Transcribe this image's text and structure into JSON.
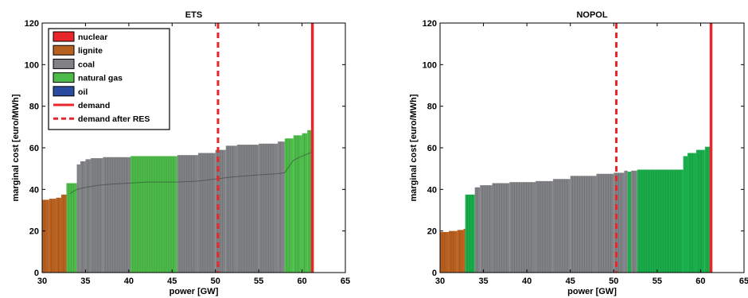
{
  "colors": {
    "nuclear": "#e8262a",
    "lignite": "#b8601f",
    "coal": "#808285",
    "natural_gas": "#4dbb4a",
    "natural_gas_dark": "#1aad4b",
    "oil": "#2b4ba0",
    "demand": "#e8262a"
  },
  "legend": {
    "entries": [
      {
        "key": "nuclear",
        "label": "nuclear",
        "kind": "box"
      },
      {
        "key": "lignite",
        "label": "lignite",
        "kind": "box"
      },
      {
        "key": "coal",
        "label": "coal",
        "kind": "box"
      },
      {
        "key": "natural_gas",
        "label": "natural gas",
        "kind": "box"
      },
      {
        "key": "oil",
        "label": "oil",
        "kind": "box"
      },
      {
        "key": "demand",
        "label": "demand",
        "kind": "solid"
      },
      {
        "key": "demand",
        "label": "demand after RES",
        "kind": "dashed"
      }
    ]
  },
  "chart_data": [
    {
      "type": "bar",
      "title": "ETS",
      "xlabel": "power [GW]",
      "ylabel": "marginal cost [euro/MWh]",
      "xlim": [
        30,
        65
      ],
      "ylim": [
        0,
        120
      ],
      "xticks": [
        30,
        35,
        40,
        45,
        50,
        55,
        60,
        65
      ],
      "yticks": [
        0,
        20,
        40,
        60,
        80,
        100,
        120
      ],
      "grid": false,
      "legend_position": "top-left",
      "demand": 61.2,
      "demand_after_res": 50.3,
      "series": [
        {
          "name": "lignite",
          "segments": [
            [
              30,
              30.8,
              35
            ],
            [
              30.8,
              31.6,
              35.5
            ],
            [
              31.6,
              32.2,
              36
            ],
            [
              32.2,
              32.8,
              37.5
            ]
          ]
        },
        {
          "name": "natural gas",
          "segments": [
            [
              32.8,
              34.0,
              43
            ]
          ]
        },
        {
          "name": "coal",
          "segments": [
            [
              34.0,
              34.4,
              52
            ],
            [
              34.4,
              35.0,
              53.5
            ],
            [
              35.0,
              35.6,
              54.5
            ],
            [
              35.6,
              37.0,
              55
            ],
            [
              37.0,
              40.2,
              55.5
            ]
          ]
        },
        {
          "name": "natural gas",
          "segments": [
            [
              40.2,
              45.6,
              56
            ]
          ]
        },
        {
          "name": "coal",
          "segments": [
            [
              45.6,
              48.0,
              56.5
            ],
            [
              48.0,
              50.0,
              57.5
            ],
            [
              50.0,
              51.2,
              59
            ],
            [
              51.2,
              52.5,
              61
            ],
            [
              52.5,
              55.0,
              61.5
            ],
            [
              55.0,
              57.2,
              62
            ],
            [
              57.2,
              58.0,
              63
            ]
          ]
        },
        {
          "name": "natural gas",
          "segments": [
            [
              58.0,
              59.0,
              64.5
            ],
            [
              59.0,
              60.0,
              66
            ],
            [
              60.0,
              60.6,
              67
            ],
            [
              60.6,
              61.2,
              68.5
            ]
          ]
        }
      ],
      "inner_line": [
        [
          33.2,
          38
        ],
        [
          34.0,
          40
        ],
        [
          35.0,
          41
        ],
        [
          36.5,
          42
        ],
        [
          38.0,
          42.5
        ],
        [
          40.0,
          43
        ],
        [
          42.0,
          43.5
        ],
        [
          45.6,
          43.5
        ],
        [
          48.0,
          44
        ],
        [
          50.0,
          45
        ],
        [
          52.0,
          46
        ],
        [
          55.0,
          47
        ],
        [
          57.0,
          47.5
        ],
        [
          58.0,
          48
        ],
        [
          59.0,
          54
        ],
        [
          60.0,
          56
        ],
        [
          61.2,
          58
        ]
      ]
    },
    {
      "type": "bar",
      "title": "NOPOL",
      "xlabel": "power [GW]",
      "ylabel": "marginal cost [euro/MWh]",
      "xlim": [
        30,
        65
      ],
      "ylim": [
        0,
        120
      ],
      "xticks": [
        30,
        35,
        40,
        45,
        50,
        55,
        60,
        65
      ],
      "yticks": [
        0,
        20,
        40,
        60,
        80,
        100,
        120
      ],
      "grid": false,
      "demand": 61.2,
      "demand_after_res": 50.3,
      "series": [
        {
          "name": "lignite",
          "segments": [
            [
              30,
              31.0,
              19.5
            ],
            [
              31.0,
              32.0,
              20
            ],
            [
              32.0,
              32.7,
              20.5
            ],
            [
              32.7,
              32.9,
              21
            ]
          ]
        },
        {
          "name": "natural gas",
          "segments": [
            [
              32.9,
              34.0,
              37.5
            ]
          ]
        },
        {
          "name": "coal",
          "segments": [
            [
              34.0,
              34.6,
              41
            ],
            [
              34.6,
              36.0,
              42
            ],
            [
              36.0,
              38.0,
              43
            ],
            [
              38.0,
              41.0,
              43.5
            ],
            [
              41.0,
              43.0,
              44
            ],
            [
              43.0,
              45.0,
              45
            ],
            [
              45.0,
              48.0,
              46.5
            ],
            [
              48.0,
              50.0,
              47.5
            ],
            [
              50.0,
              51.2,
              48
            ],
            [
              51.2,
              51.6,
              49
            ]
          ]
        },
        {
          "name": "natural gas",
          "segments": [
            [
              51.6,
              52.0,
              48.5
            ]
          ]
        },
        {
          "name": "coal",
          "segments": [
            [
              52.0,
              52.7,
              49
            ]
          ]
        },
        {
          "name": "natural gas",
          "segments": [
            [
              52.7,
              58.0,
              49.5
            ],
            [
              58.0,
              58.5,
              56
            ],
            [
              58.5,
              59.5,
              57.5
            ],
            [
              59.5,
              60.5,
              59
            ],
            [
              60.5,
              61.2,
              60.5
            ]
          ]
        }
      ]
    }
  ]
}
